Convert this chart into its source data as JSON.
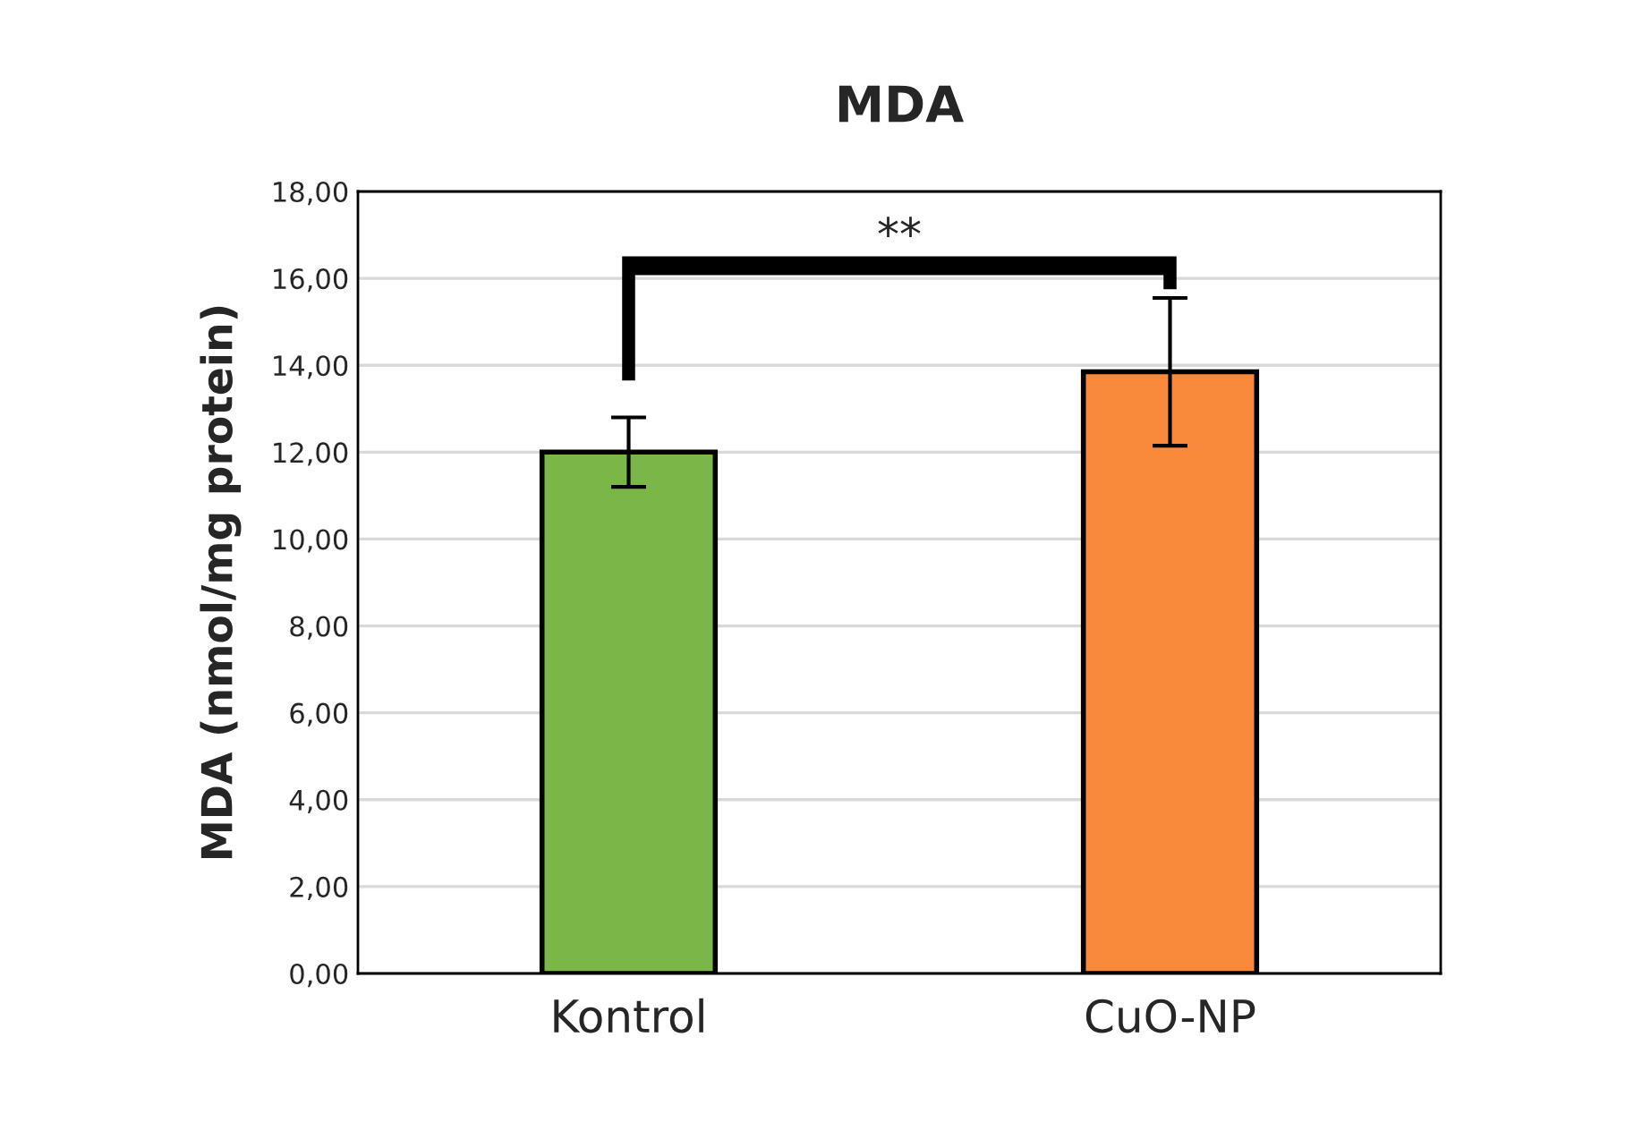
{
  "chart_data": {
    "type": "bar",
    "title": "MDA",
    "ylabel": "MDA (nmol/mg protein)",
    "categories": [
      "Kontrol",
      "CuO-NP"
    ],
    "values": [
      12.0,
      13.85
    ],
    "errors": [
      0.8,
      1.7
    ],
    "colors": [
      "#7ab648",
      "#f98a3b"
    ],
    "ylim": [
      0,
      18
    ],
    "yticks": [
      {
        "value": 0,
        "label": "0,00"
      },
      {
        "value": 2,
        "label": "2,00"
      },
      {
        "value": 4,
        "label": "4,00"
      },
      {
        "value": 6,
        "label": "6,00"
      },
      {
        "value": 8,
        "label": "8,00"
      },
      {
        "value": 10,
        "label": "10,00"
      },
      {
        "value": 12,
        "label": "12,00"
      },
      {
        "value": 14,
        "label": "14,00"
      },
      {
        "value": 16,
        "label": "16,00"
      },
      {
        "value": 18,
        "label": "18,00"
      }
    ],
    "grid": "y",
    "annotations": [
      "**"
    ]
  }
}
